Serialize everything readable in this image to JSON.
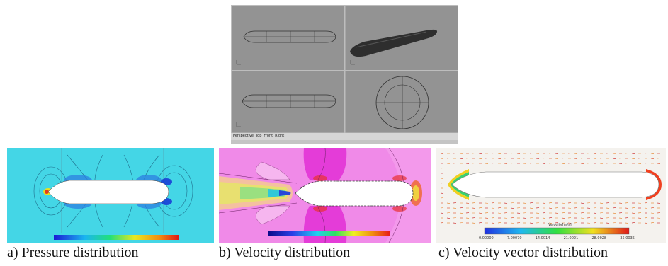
{
  "figure": {
    "cad_view": {
      "status_tabs": [
        "Perspective",
        "Top",
        "Front",
        "Right"
      ]
    },
    "panels": [
      {
        "id": "a",
        "caption": "a)  Pressure distribution"
      },
      {
        "id": "b",
        "caption": "b) Velocity distribution"
      },
      {
        "id": "c",
        "caption": "c) Velocity vector distribution"
      }
    ],
    "vector_colorbar": {
      "title": "Velocity[m/s]",
      "ticks": [
        "0.00000",
        "7.00070",
        "14.0014",
        "21.0021",
        "28.0028",
        "35.0035"
      ]
    },
    "colors": {
      "cad_background": "#909090",
      "pressure_field": "#3fd7e8",
      "velocity_field": "#f08ce8",
      "vector_background": "#f4f2ee"
    }
  }
}
